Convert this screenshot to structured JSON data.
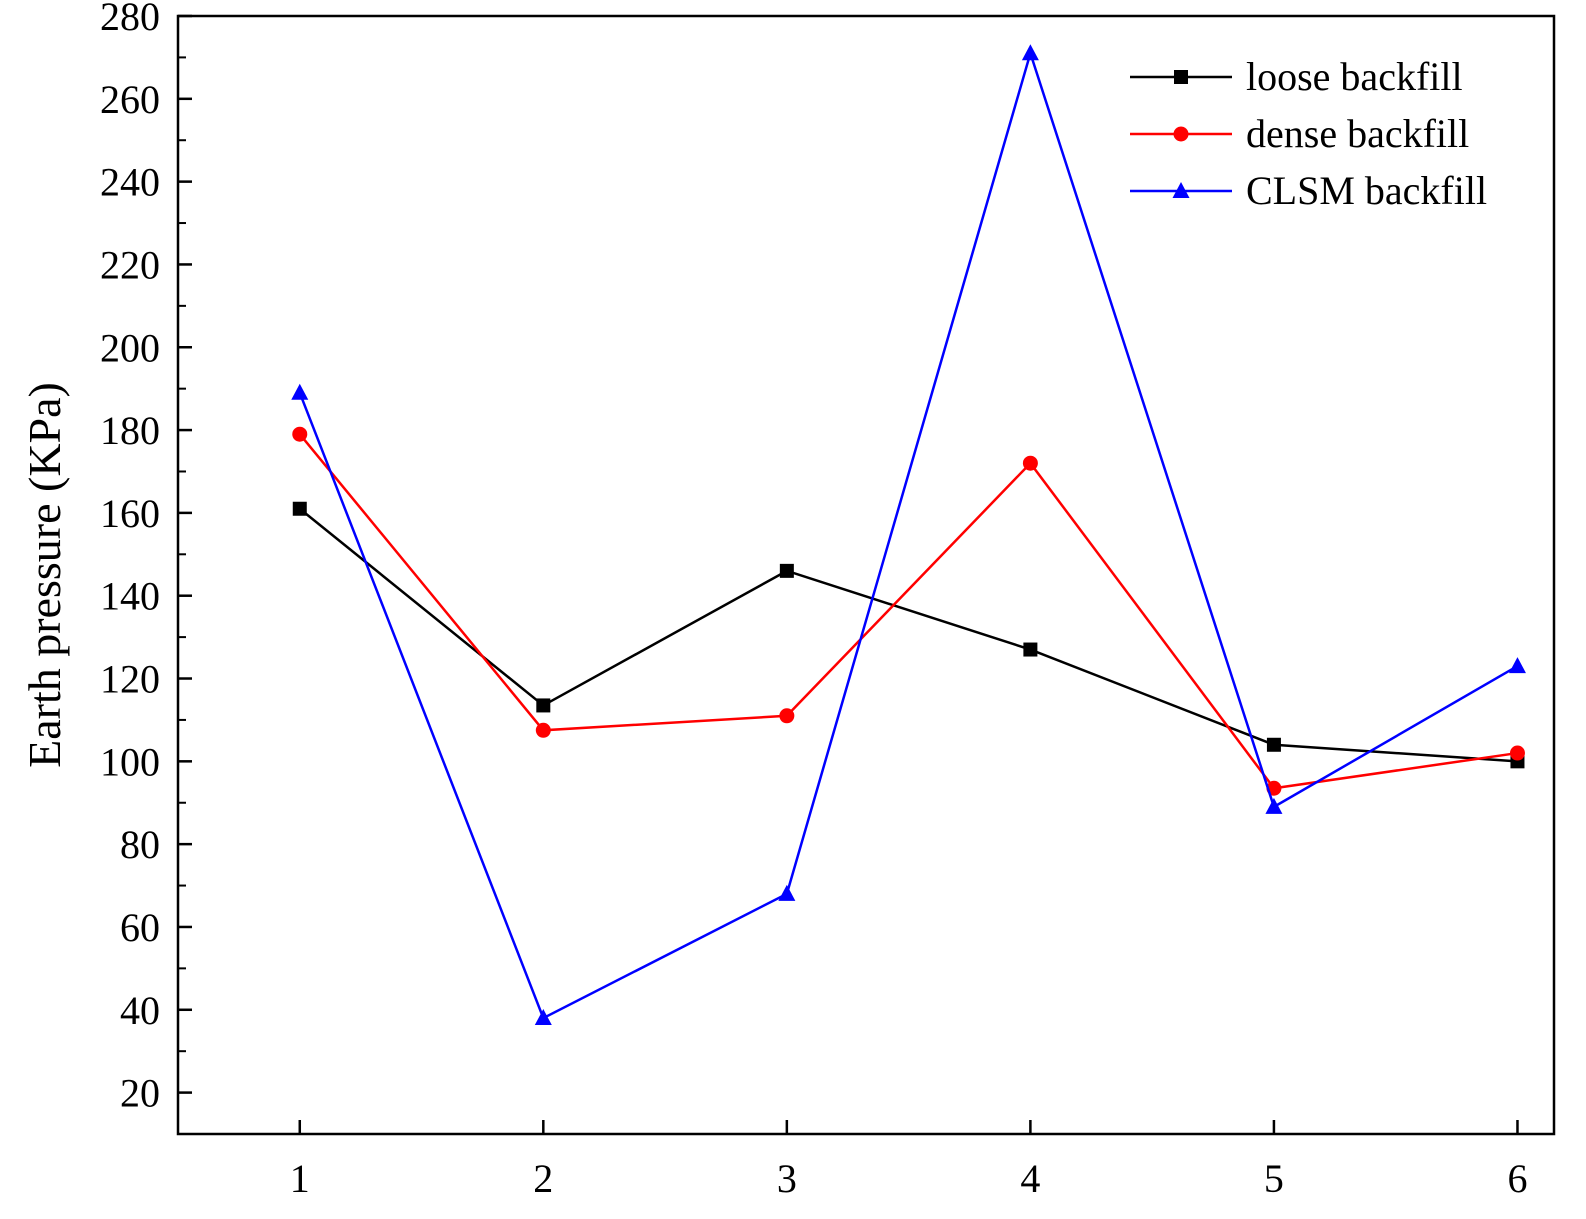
{
  "chart_data": {
    "type": "line",
    "title": "",
    "xlabel": "",
    "ylabel": "Earth pressure (KPa)",
    "x": [
      1,
      2,
      3,
      4,
      5,
      6
    ],
    "xticks": [
      "1",
      "2",
      "3",
      "4",
      "5",
      "6"
    ],
    "xlim": [
      0.5,
      6.15
    ],
    "ylim": [
      10,
      280
    ],
    "yticks": [
      "20",
      "40",
      "60",
      "80",
      "100",
      "120",
      "140",
      "160",
      "180",
      "200",
      "220",
      "240",
      "260",
      "280"
    ],
    "grid": false,
    "legend_position": "top-right",
    "series": [
      {
        "name": "loose backfill",
        "color": "#000000",
        "marker": "square",
        "values": [
          161,
          113.5,
          146,
          127,
          104,
          100
        ]
      },
      {
        "name": "dense backfill",
        "color": "#ff0000",
        "marker": "circle",
        "values": [
          179,
          107.5,
          111,
          172,
          93.5,
          102
        ]
      },
      {
        "name": "CLSM backfill",
        "color": "#0000ff",
        "marker": "triangle",
        "values": [
          189,
          38,
          68,
          271,
          89,
          123
        ]
      }
    ]
  }
}
